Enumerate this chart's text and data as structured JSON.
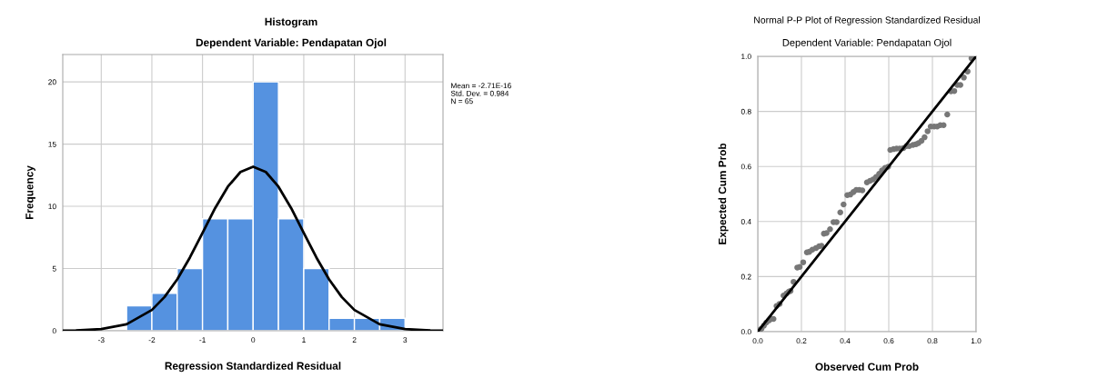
{
  "chart_data": [
    {
      "type": "histogram",
      "title": "Histogram",
      "subtitle": "Dependent Variable: Pendapatan Ojol",
      "xlabel": "Regression Standardized Residual",
      "ylabel": "Frequency",
      "bins": [
        -2.5,
        -2,
        -1.5,
        -1,
        -0.5,
        0,
        0.5,
        1,
        1.5,
        2,
        2.5,
        3
      ],
      "values": [
        2,
        3,
        5,
        9,
        9,
        20,
        9,
        5,
        1,
        1,
        1
      ],
      "color": "#5592e0",
      "series": [
        {
          "type": "line",
          "color": "#000000",
          "x": [
            -3.76,
            -3.5,
            -3,
            -2.5,
            -2,
            -1.75,
            -1.5,
            -1.25,
            -1,
            -0.75,
            -0.5,
            -0.25,
            0,
            0.25,
            0.5,
            0.75,
            1,
            1.25,
            1.5,
            1.75,
            2,
            2.5,
            3,
            3.5,
            3.75
          ],
          "values": [
            0.01,
            0.02,
            0.13,
            0.52,
            1.67,
            2.71,
            4.13,
            5.88,
            7.86,
            9.86,
            11.58,
            12.76,
            13.18,
            12.76,
            11.58,
            9.86,
            7.86,
            5.88,
            4.13,
            2.71,
            1.67,
            0.52,
            0.13,
            0.02,
            0.01
          ]
        }
      ],
      "annotations": [
        "Mean = -2.71E-16",
        "Std. Dev. = 0.984",
        "N = 65"
      ],
      "xlim": [
        -3.76,
        3.75
      ],
      "ylim": [
        0,
        22.2
      ],
      "xticks": [
        -3,
        -2,
        -1,
        0,
        1,
        2,
        3
      ],
      "yticks": [
        0,
        5,
        10,
        15,
        20
      ],
      "grid": true
    },
    {
      "type": "scatter",
      "title": "Normal P-P Plot of Regression Standardized Residual",
      "subtitle": "Dependent Variable: Pendapatan Ojol",
      "xlabel": "Observed Cum Prob",
      "ylabel": "Expected Cum Prob",
      "series": [
        {
          "type": "scatter",
          "marker": "circle",
          "color": "#777777",
          "x": [
            0.007,
            0.017,
            0.028,
            0.039,
            0.051,
            0.063,
            0.072,
            0.086,
            0.1,
            0.118,
            0.132,
            0.142,
            0.15,
            0.164,
            0.181,
            0.192,
            0.208,
            0.225,
            0.236,
            0.25,
            0.267,
            0.281,
            0.292,
            0.303,
            0.315,
            0.331,
            0.347,
            0.361,
            0.378,
            0.393,
            0.41,
            0.424,
            0.438,
            0.451,
            0.465,
            0.479,
            0.5,
            0.514,
            0.528,
            0.542,
            0.556,
            0.569,
            0.583,
            0.597,
            0.607,
            0.622,
            0.636,
            0.65,
            0.667,
            0.681,
            0.694,
            0.711,
            0.725,
            0.736,
            0.75,
            0.764,
            0.778,
            0.792,
            0.808,
            0.822,
            0.836,
            0.851,
            0.868,
            0.885,
            0.9,
            0.914,
            0.928,
            0.944,
            0.961,
            0.979,
            0.994
          ],
          "values": [
            0.005,
            0.011,
            0.022,
            0.033,
            0.041,
            0.046,
            0.046,
            0.093,
            0.101,
            0.131,
            0.139,
            0.145,
            0.148,
            0.181,
            0.233,
            0.235,
            0.252,
            0.288,
            0.29,
            0.298,
            0.304,
            0.31,
            0.312,
            0.356,
            0.358,
            0.372,
            0.398,
            0.398,
            0.433,
            0.462,
            0.496,
            0.498,
            0.507,
            0.515,
            0.515,
            0.513,
            0.542,
            0.548,
            0.553,
            0.562,
            0.573,
            0.586,
            0.595,
            0.599,
            0.66,
            0.663,
            0.665,
            0.665,
            0.667,
            0.674,
            0.674,
            0.678,
            0.681,
            0.685,
            0.693,
            0.706,
            0.728,
            0.745,
            0.745,
            0.745,
            0.75,
            0.75,
            0.789,
            0.873,
            0.874,
            0.896,
            0.896,
            0.923,
            0.945,
            0.993,
            1.0
          ]
        },
        {
          "type": "line",
          "color": "#000000",
          "x": [
            0,
            1
          ],
          "values": [
            0,
            1
          ]
        }
      ],
      "xlim": [
        0,
        1
      ],
      "ylim": [
        0,
        1
      ],
      "xticks": [
        {
          "value": 0,
          "label": "0.0"
        },
        {
          "value": 0.2,
          "label": "0.2"
        },
        {
          "value": 0.4,
          "label": "0.4"
        },
        {
          "value": 0.6,
          "label": "0.6"
        },
        {
          "value": 0.8,
          "label": "0.8"
        },
        {
          "value": 1,
          "label": "1.0"
        }
      ],
      "yticks": [
        {
          "value": 0,
          "label": "0.0"
        },
        {
          "value": 0.2,
          "label": "0.2"
        },
        {
          "value": 0.4,
          "label": "0.4"
        },
        {
          "value": 0.6,
          "label": "0.6"
        },
        {
          "value": 0.8,
          "label": "0.8"
        },
        {
          "value": 1,
          "label": "1.0"
        }
      ],
      "grid": true
    }
  ]
}
